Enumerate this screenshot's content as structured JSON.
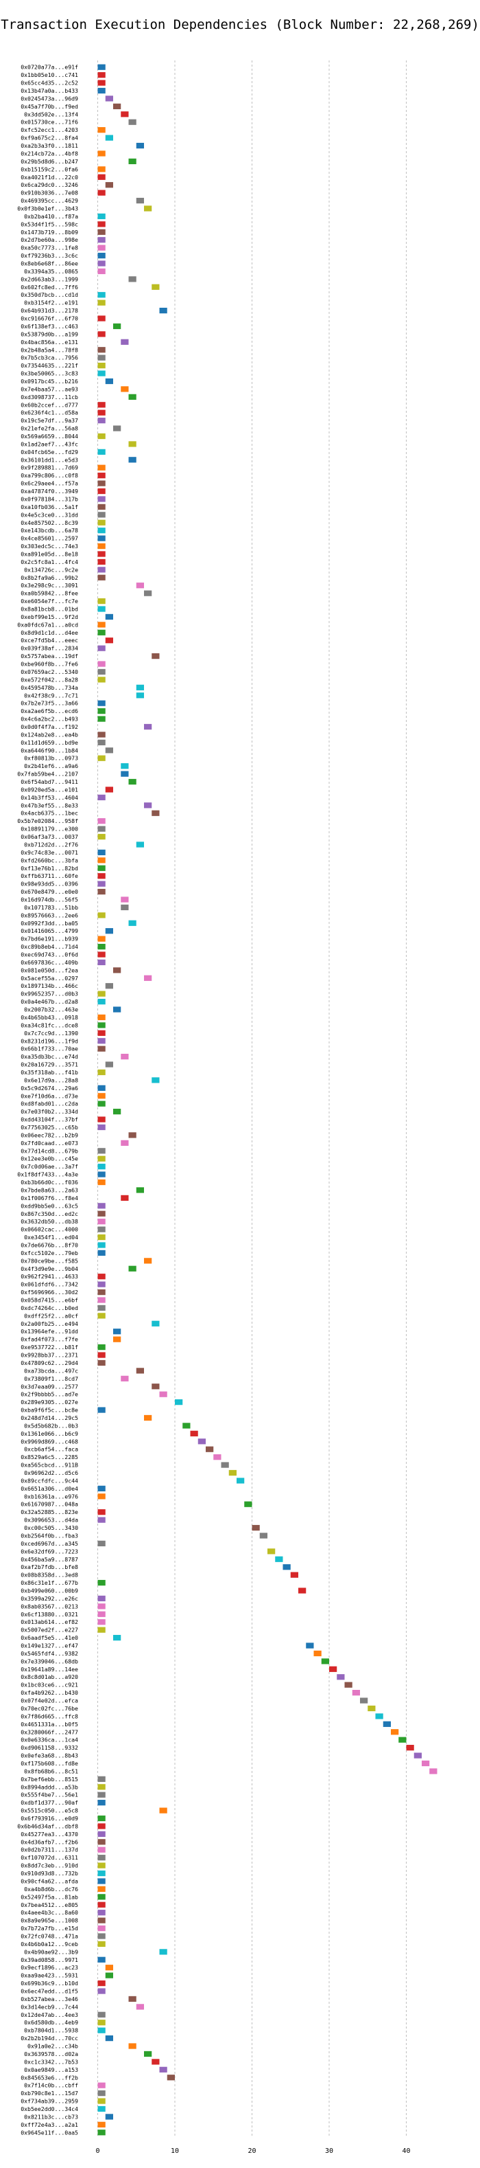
{
  "chart_data": {
    "type": "bar",
    "orientation": "horizontal-gantt",
    "title": "Transaction Execution Dependencies (Block Number: 22,268,269)",
    "xlabel": "",
    "ylabel": "",
    "xlim": [
      -2,
      46
    ],
    "xticks": [
      0,
      10,
      20,
      30,
      40
    ],
    "grid": "x-dashed",
    "palette": [
      "#1f77b4",
      "#ff7f0e",
      "#2ca02c",
      "#d62728",
      "#9467bd",
      "#8c564b",
      "#e377c2",
      "#7f7f7f",
      "#bcbd22",
      "#17becf"
    ],
    "bar_width": 1,
    "transactions": [
      [
        "0x0720a77a...e91f",
        0,
        0
      ],
      [
        "0x1bb05e10...c741",
        0,
        3
      ],
      [
        "0x65cc4d35...2c52",
        0,
        3
      ],
      [
        "0x13b47a0a...b433",
        0,
        0
      ],
      [
        "0x0245473a...96d9",
        1,
        4
      ],
      [
        "0x45a7f70b...f9ed",
        2,
        5
      ],
      [
        "0x3dd502e...13f4",
        3,
        3
      ],
      [
        "0x015730ce...71f6",
        4,
        7
      ],
      [
        "0xfc52ecc1...4203",
        0,
        1
      ],
      [
        "0xf9a675c2...8fa4",
        1,
        9
      ],
      [
        "0xa2b3a3f0...1811",
        5,
        0
      ],
      [
        "0x214cb72a...4bf8",
        0,
        1
      ],
      [
        "0x29b5d8d6...b247",
        4,
        2
      ],
      [
        "0xb15159c2...0fa6",
        0,
        1
      ],
      [
        "0xa4021f1d...22c0",
        0,
        3
      ],
      [
        "0x6ca29dc0...3246",
        1,
        5
      ],
      [
        "0x910b3036...7e08",
        0,
        3
      ],
      [
        "0x469395cc...4629",
        5,
        7
      ],
      [
        "0x0f3b0e1ef...3b43",
        6,
        8
      ],
      [
        "0xb2ba410...f87a",
        0,
        9
      ],
      [
        "0x53d4f1f5...598c",
        0,
        3
      ],
      [
        "0x1473b719...8b09",
        0,
        5
      ],
      [
        "0x2d7be60a...998e",
        0,
        4
      ],
      [
        "0xa50c7773...1fe8",
        0,
        6
      ],
      [
        "0xf79236b3...3c6c",
        0,
        0
      ],
      [
        "0x8eb6e68f...86ee",
        0,
        4
      ],
      [
        "0x3394a35...0865",
        0,
        6
      ],
      [
        "0x2d663ab3...1999",
        4,
        7
      ],
      [
        "0x602fc8ed...7ff6",
        7,
        8
      ],
      [
        "0x350d7bcb...cd1d",
        0,
        9
      ],
      [
        "0xb3154f2...e191",
        0,
        8
      ],
      [
        "0x64b931d3...2178",
        8,
        0
      ],
      [
        "0xc916676f...6f70",
        0,
        3
      ],
      [
        "0x6f138ef3...c463",
        2,
        2
      ],
      [
        "0x53879d0b...a199",
        0,
        3
      ],
      [
        "0x4bac856a...e131",
        3,
        4
      ],
      [
        "0x2b48a5a4...78f8",
        0,
        5
      ],
      [
        "0x7b5cb3ca...7956",
        0,
        7
      ],
      [
        "0x73544635...221f",
        0,
        8
      ],
      [
        "0x3be50065...3c83",
        0,
        9
      ],
      [
        "0x0917bc45...b216",
        1,
        0
      ],
      [
        "0x7e4baa57...ae93",
        3,
        1
      ],
      [
        "0xd3098737...11cb",
        4,
        2
      ],
      [
        "0x60b2ccef...d777",
        0,
        3
      ],
      [
        "0x6236f4c1...d58a",
        0,
        3
      ],
      [
        "0x19c5e7df...9a37",
        0,
        4
      ],
      [
        "0x21efe2fa...56a8",
        2,
        7
      ],
      [
        "0x569a6659...8044",
        0,
        8
      ],
      [
        "0x1ad2aef7...43fc",
        4,
        8
      ],
      [
        "0x04fcb65e...fd29",
        0,
        9
      ],
      [
        "0x36101dd1...e5d3",
        4,
        0
      ],
      [
        "0x9f289881...7d69",
        0,
        1
      ],
      [
        "0xa799c806...c0f8",
        0,
        3
      ],
      [
        "0x6c29aee4...f57a",
        0,
        5
      ],
      [
        "0xa47874f0...3949",
        0,
        3
      ],
      [
        "0x0f978184...317b",
        0,
        4
      ],
      [
        "0xa10fb036...5a1f",
        0,
        5
      ],
      [
        "0x4e5c3ce0...31dd",
        0,
        7
      ],
      [
        "0x4e857502...8c39",
        0,
        8
      ],
      [
        "0xe143bcdb...6a78",
        0,
        9
      ],
      [
        "0x4ce85601...2597",
        0,
        0
      ],
      [
        "0x303edc5c...74e3",
        0,
        1
      ],
      [
        "0xa891e05d...8e18",
        0,
        3
      ],
      [
        "0x2c5fc8a1...4fc4",
        0,
        3
      ],
      [
        "0x134726c...9c2e",
        0,
        4
      ],
      [
        "0x8b2fa9a6...99b2",
        0,
        5
      ],
      [
        "0x3e298c9c...3091",
        5,
        6
      ],
      [
        "0xa0b59842...8fee",
        6,
        7
      ],
      [
        "0xe6054e7f...fc7e",
        0,
        8
      ],
      [
        "0x8a81bcb8...01bd",
        0,
        9
      ],
      [
        "0xebf99e15...9f2d",
        1,
        0
      ],
      [
        "0xa0fdc67a1...a0cd",
        0,
        1
      ],
      [
        "0x8d9d1c1d...d4ee",
        0,
        2
      ],
      [
        "0xce7fd5b4...eeec",
        1,
        3
      ],
      [
        "0x039f38af...2834",
        0,
        4
      ],
      [
        "0x5757abea...19df",
        7,
        5
      ],
      [
        "0xbe960f8b...7fe6",
        0,
        6
      ],
      [
        "0x07659ac2...5340",
        0,
        7
      ],
      [
        "0xe572f042...8a28",
        0,
        8
      ],
      [
        "0x4595478b...734a",
        5,
        9
      ],
      [
        "0x42f38c9...7c71",
        5,
        9
      ],
      [
        "0x7b2e73f5...3a66",
        0,
        0
      ],
      [
        "0xa2ae6f5b...ecd6",
        0,
        2
      ],
      [
        "0x4c6a2bc2...b493",
        0,
        2
      ],
      [
        "0x0d0f4f7a...f192",
        6,
        4
      ],
      [
        "0x124ab2e8...ea4b",
        0,
        5
      ],
      [
        "0x11d1d659...bd9e",
        0,
        7
      ],
      [
        "0xa6446f90...1b84",
        1,
        7
      ],
      [
        "0xf80813b...0973",
        0,
        8
      ],
      [
        "0x2b41ef6...a9a6",
        3,
        9
      ],
      [
        "0x7fab59be4...2107",
        3,
        0
      ],
      [
        "0x6f54abd7...9411",
        4,
        2
      ],
      [
        "0x0920ed5a...e101",
        1,
        3
      ],
      [
        "0x14b3ff53...4604",
        0,
        4
      ],
      [
        "0x47b3ef55...8e33",
        6,
        4
      ],
      [
        "0x4acb6375...1bec",
        7,
        5
      ],
      [
        "0x5b7e02084...958f",
        0,
        6
      ],
      [
        "0x10891179...e300",
        0,
        7
      ],
      [
        "0x06af3a73...0037",
        0,
        8
      ],
      [
        "0xb712d2d...2f76",
        5,
        9
      ],
      [
        "0x9c74c83e...0071",
        0,
        0
      ],
      [
        "0xfd2660bc...3bfa",
        0,
        1
      ],
      [
        "0xf13e76b1...82bd",
        0,
        2
      ],
      [
        "0xffb63711...60fe",
        0,
        3
      ],
      [
        "0x98e93dd5...0396",
        0,
        4
      ],
      [
        "0x670e8479...e0e0",
        0,
        5
      ],
      [
        "0x16d974db...56f5",
        3,
        6
      ],
      [
        "0x1071783...51bb",
        3,
        7
      ],
      [
        "0x89576663...2ee6",
        0,
        8
      ],
      [
        "0x0992f3dd...ba05",
        4,
        9
      ],
      [
        "0x01416065...4799",
        1,
        0
      ],
      [
        "0x7bd6e191...b939",
        0,
        1
      ],
      [
        "0xc89b8eb4...71d4",
        0,
        2
      ],
      [
        "0xec69d743...0f6d",
        0,
        3
      ],
      [
        "0x6697836c...409b",
        0,
        4
      ],
      [
        "0x081e050d...f2ea",
        2,
        5
      ],
      [
        "0x5acef55a...0297",
        6,
        6
      ],
      [
        "0x1897134b...466c",
        1,
        7
      ],
      [
        "0x99652357...d0b3",
        0,
        8
      ],
      [
        "0x0a4e467b...d2a8",
        0,
        9
      ],
      [
        "0x2007b32...463e",
        2,
        0
      ],
      [
        "0x4b65bb43...0918",
        0,
        1
      ],
      [
        "0xa34c81fc...dce8",
        0,
        2
      ],
      [
        "0x7c7cc9d...1390",
        0,
        3
      ],
      [
        "0x8231d196...1f9d",
        0,
        4
      ],
      [
        "0x66b1f733...70ae",
        0,
        5
      ],
      [
        "0xa35db3bc...e74d",
        3,
        6
      ],
      [
        "0x20a16729...3571",
        1,
        7
      ],
      [
        "0x35f318ab...f41b",
        0,
        8
      ],
      [
        "0x6e17d9a...28a8",
        7,
        9
      ],
      [
        "0x5c9d2674...29a6",
        0,
        0
      ],
      [
        "0xe7f10d6a...d73e",
        0,
        1
      ],
      [
        "0xd8fabd01...c2da",
        0,
        2
      ],
      [
        "0x7e03f0b2...334d",
        2,
        2
      ],
      [
        "0xdd43104f...37bf",
        0,
        3
      ],
      [
        "0x77563025...c65b",
        0,
        4
      ],
      [
        "0x06eec782...b2b9",
        4,
        5
      ],
      [
        "0x7fd0caad...e073",
        3,
        6
      ],
      [
        "0x77d14cd8...679b",
        0,
        7
      ],
      [
        "0x12ee3e0b...c45e",
        0,
        8
      ],
      [
        "0x7c0d06ae...3a7f",
        0,
        9
      ],
      [
        "0x1f8df7433...4a3e",
        0,
        0
      ],
      [
        "0xb3b66d0c...f036",
        0,
        1
      ],
      [
        "0x7bde8a63...2a63",
        5,
        2
      ],
      [
        "0x1f0067f6...f8e4",
        3,
        3
      ],
      [
        "0xdd9bb5e0...63c5",
        0,
        4
      ],
      [
        "0x867c350d...ed2c",
        0,
        5
      ],
      [
        "0x3632db50...db38",
        0,
        6
      ],
      [
        "0x06602cac...4000",
        0,
        7
      ],
      [
        "0xe3454f1...ed04",
        0,
        8
      ],
      [
        "0x7de6676b...8f70",
        0,
        9
      ],
      [
        "0xfcc5102e...79eb",
        0,
        0
      ],
      [
        "0x780ce9be...f585",
        6,
        1
      ],
      [
        "0x4f3d9e9e...9b04",
        4,
        2
      ],
      [
        "0x962f2941...4633",
        0,
        3
      ],
      [
        "0x061dfdf6...7342",
        0,
        4
      ],
      [
        "0xf5696966...30d2",
        0,
        5
      ],
      [
        "0x058d7415...e6bf",
        0,
        6
      ],
      [
        "0xdc74264c...b0ed",
        0,
        7
      ],
      [
        "0xdff25f2...a0cf",
        0,
        8
      ],
      [
        "0x2a00fb25...e494",
        7,
        9
      ],
      [
        "0x13964efe...91dd",
        2,
        0
      ],
      [
        "0xfad4f073...f7fe",
        2,
        1
      ],
      [
        "0xe9537722...b81f",
        0,
        2
      ],
      [
        "0x9928bb37...2371",
        0,
        3
      ],
      [
        "0x47809c62...29d4",
        0,
        5
      ],
      [
        "0xa73bcda...497c",
        5,
        5
      ],
      [
        "0x73809f1...8cd7",
        3,
        6
      ],
      [
        "0x3d7eaa09...2577",
        7,
        5
      ],
      [
        "0x2f9bbbb5...ad7e",
        8,
        6
      ],
      [
        "0x289e9305...027e",
        10,
        9
      ],
      [
        "0xba9f6f5c...bc8e",
        0,
        0
      ],
      [
        "0x248d7d14...29c5",
        6,
        1
      ],
      [
        "0x5d5b682b...0b3",
        11,
        2
      ],
      [
        "0x1361e066...b6c9",
        12,
        3
      ],
      [
        "0x9969d869...c468",
        13,
        4
      ],
      [
        "0xcb6af54...faca",
        14,
        5
      ],
      [
        "0x8529a6c5...2285",
        15,
        6
      ],
      [
        "0xa565cbcd...911B",
        16,
        7
      ],
      [
        "0x96962d2...d5c6",
        17,
        8
      ],
      [
        "0x89ccfdfc...9c44",
        18,
        9
      ],
      [
        "0x6651a306...d0e4",
        0,
        0
      ],
      [
        "0xb16361a...e976",
        0,
        1
      ],
      [
        "0x61670987...048a",
        19,
        2
      ],
      [
        "0x32a52885...823e",
        0,
        3
      ],
      [
        "0x3096653...d4da",
        0,
        4
      ],
      [
        "0xc00c505...3430",
        20,
        5
      ],
      [
        "0xb2564f0b...fba3",
        21,
        7
      ],
      [
        "0xced6967d...a345",
        0,
        7
      ],
      [
        "0x6e32df69...7223",
        22,
        8
      ],
      [
        "0x456ba5a9...8787",
        23,
        9
      ],
      [
        "0xaf2b7fdb...bfe8",
        24,
        0
      ],
      [
        "0x08b8358d...3ed8",
        25,
        3
      ],
      [
        "0x86c31e1f...677b",
        0,
        2
      ],
      [
        "0xb499e060...00b9",
        26,
        3
      ],
      [
        "0x3599a292...e26c",
        0,
        4
      ],
      [
        "0x8ab03567...0213",
        0,
        6
      ],
      [
        "0x6cf13880...0321",
        0,
        6
      ],
      [
        "0x013ab614...ef82",
        0,
        6
      ],
      [
        "0x5007ed2f...e227",
        0,
        8
      ],
      [
        "0x6aadf5e5...41e0",
        2,
        9
      ],
      [
        "0x149e1327...ef47",
        27,
        0
      ],
      [
        "0x5465fdf4...9382",
        28,
        1
      ],
      [
        "0x7e339046...68db",
        29,
        2
      ],
      [
        "0x19641a89...14ee",
        30,
        3
      ],
      [
        "0x8c8d01ab...a920",
        31,
        4
      ],
      [
        "0x1bc03ce6...c921",
        32,
        5
      ],
      [
        "0xfa4b9262...b430",
        33,
        6
      ],
      [
        "0x07f4e02d...efca",
        34,
        7
      ],
      [
        "0x70ec02fc...76be",
        35,
        8
      ],
      [
        "0x7f86d665...ffc8",
        36,
        9
      ],
      [
        "0x4651331a...b0f5",
        37,
        0
      ],
      [
        "0x3280066f...2477",
        38,
        1
      ],
      [
        "0x0e6336ca...1ca4",
        39,
        2
      ],
      [
        "0xd9061158...9332",
        40,
        3
      ],
      [
        "0x0efe3a68...8b43",
        41,
        4
      ],
      [
        "0xf175b608...fd8e",
        42,
        6
      ],
      [
        "0x8fb68b6...8c51",
        43,
        6
      ],
      [
        "0x7bef6ebb...8515",
        0,
        7
      ],
      [
        "0x8994addd...a53b",
        0,
        8
      ],
      [
        "0x555f4be7...56e1",
        0,
        7
      ],
      [
        "0xdbf1d377...90af",
        0,
        0
      ],
      [
        "0x5515c050...e5c8",
        8,
        1
      ],
      [
        "0x6f793916...e0d9",
        0,
        2
      ],
      [
        "0x6b46d34af...dbf8",
        0,
        3
      ],
      [
        "0x45277ea3...4370",
        0,
        4
      ],
      [
        "0x4d36afb7...f2b6",
        0,
        5
      ],
      [
        "0x0d2b7311...137d",
        0,
        6
      ],
      [
        "0xf107072d...6311",
        0,
        7
      ],
      [
        "0x8dd7c3eb...910d",
        0,
        8
      ],
      [
        "0x910d93d8...732b",
        0,
        9
      ],
      [
        "0x90cf4a62...afda",
        0,
        0
      ],
      [
        "0xa4b8d6b...dc76",
        0,
        1
      ],
      [
        "0x52497f5a...81ab",
        0,
        2
      ],
      [
        "0x7bea4512...e805",
        0,
        3
      ],
      [
        "0x4aee4b3c...8a60",
        0,
        4
      ],
      [
        "0x8a9e965e...1008",
        0,
        5
      ],
      [
        "0x7b72a7fb...e15d",
        0,
        6
      ],
      [
        "0x72fc0748...471a",
        0,
        7
      ],
      [
        "0x4b6b0a12...9ceb",
        0,
        8
      ],
      [
        "0x4b90ae92...3b9",
        8,
        9
      ],
      [
        "0x39ad0858...9971",
        0,
        0
      ],
      [
        "0x9ecf1896...ac23",
        1,
        1
      ],
      [
        "0xaa9ae423...5931",
        1,
        2
      ],
      [
        "0x699b36c9...b10d",
        0,
        3
      ],
      [
        "0x6ec47edd...d1f5",
        0,
        4
      ],
      [
        "0xb527abea...3e46",
        4,
        5
      ],
      [
        "0x3d14ecb9...7c44",
        5,
        6
      ],
      [
        "0x12de47ab...4ee3",
        0,
        7
      ],
      [
        "0x6d580db...4eb9",
        0,
        8
      ],
      [
        "0xb7804d1...5938",
        0,
        9
      ],
      [
        "0x2b2b194d...70cc",
        1,
        0
      ],
      [
        "0x91a0e2...c34b",
        4,
        1
      ],
      [
        "0x3639578...d02a",
        6,
        2
      ],
      [
        "0xc1c3342...7b53",
        7,
        3
      ],
      [
        "0x0ae9849...a153",
        8,
        4
      ],
      [
        "0x845653e6...ff2b",
        9,
        5
      ],
      [
        "0x7f14c0b...cbff",
        0,
        6
      ],
      [
        "0xb790c8e1...15d7",
        0,
        7
      ],
      [
        "0xf734ab39...2959",
        0,
        8
      ],
      [
        "0xb5ee2dd0...34c4",
        0,
        9
      ],
      [
        "0x8211b3c...cb73",
        1,
        0
      ],
      [
        "0xff72e4a3...a2a1",
        0,
        1
      ],
      [
        "0x9645e11f...0aa5",
        0,
        2
      ]
    ]
  }
}
